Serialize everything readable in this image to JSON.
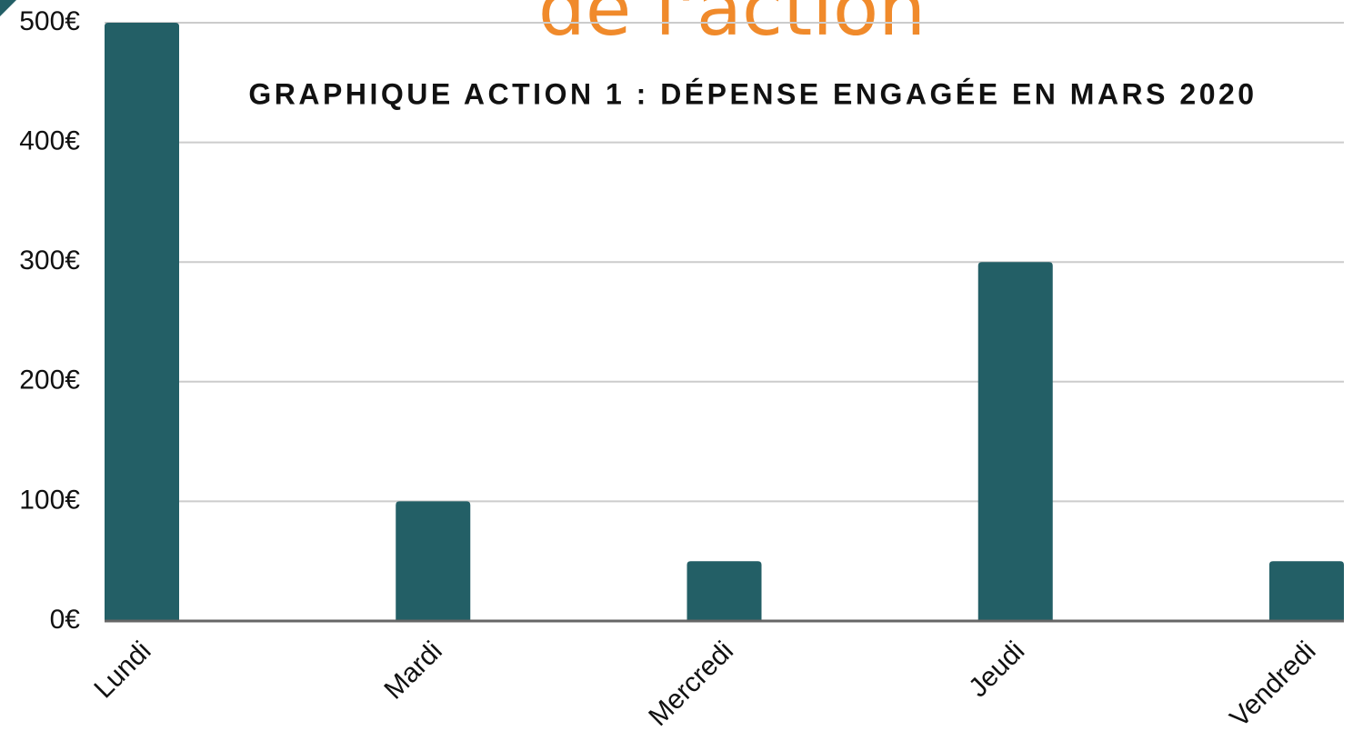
{
  "heading": "de l'action",
  "chart_data": {
    "type": "bar",
    "title": "GRAPHIQUE ACTION 1 :  DÉPENSE ENGAGÉE EN MARS 2020",
    "categories": [
      "Lundi",
      "Mardi",
      "Mercredi",
      "Jeudi",
      "Vendredi"
    ],
    "values": [
      500,
      100,
      50,
      300,
      50
    ],
    "color": "#235f66",
    "ylim": [
      0,
      500
    ],
    "yticks": [
      {
        "value": 0,
        "label": "0€"
      },
      {
        "value": 100,
        "label": "100€"
      },
      {
        "value": 200,
        "label": "200€"
      },
      {
        "value": 300,
        "label": "300€"
      },
      {
        "value": 400,
        "label": "400€"
      },
      {
        "value": 500,
        "label": "500€"
      }
    ],
    "grid": true
  }
}
